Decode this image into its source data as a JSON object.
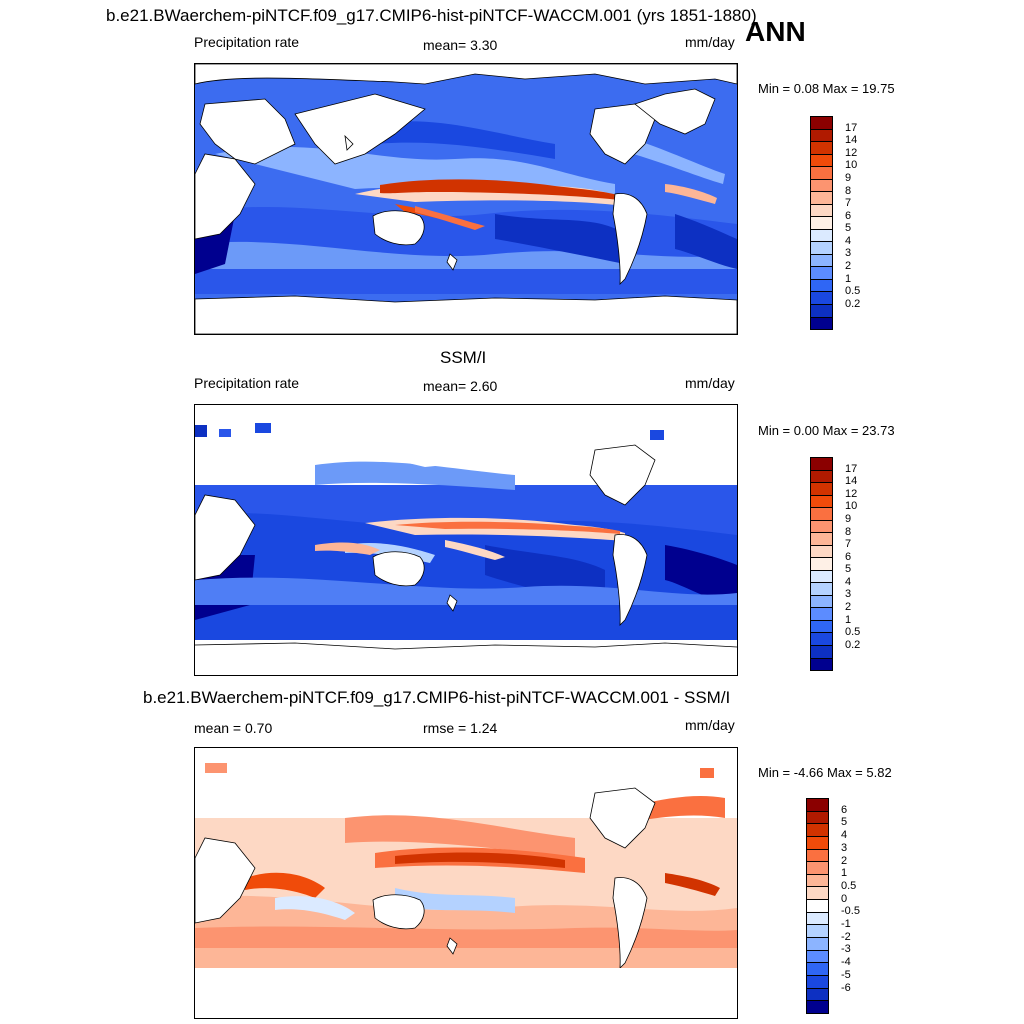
{
  "title": "b.e21.BWaerchem-piNTCF.f09_g17.CMIP6-hist-piNTCF-WACCM.001 (yrs 1851-1880)",
  "season": "ANN",
  "panels": [
    {
      "id": "model",
      "title": "",
      "left_text": "Precipitation rate",
      "mid_text": "mean=   3.30",
      "units": "mm/day",
      "range_text": "Min =   0.08 Max =  19.75",
      "colorbar": {
        "labels": [
          "17",
          "14",
          "12",
          "10",
          "9",
          "8",
          "7",
          "6",
          "5",
          "4",
          "3",
          "2",
          "1",
          "0.5",
          "0.2"
        ],
        "colors": [
          "#8b0000",
          "#b01a00",
          "#d13300",
          "#f04b0a",
          "#fa7040",
          "#fc9470",
          "#fdb697",
          "#fdd8c4",
          "#fef0e6",
          "#dbeaff",
          "#b4d2ff",
          "#8cb4ff",
          "#5c8cff",
          "#2f66f5",
          "#1a48e0",
          "#0d30c2",
          "#00008f"
        ]
      }
    },
    {
      "id": "obs",
      "title": "SSM/I",
      "left_text": "Precipitation rate",
      "mid_text": "mean=   2.60",
      "units": "mm/day",
      "range_text": "Min =   0.00 Max =  23.73",
      "colorbar": {
        "labels": [
          "17",
          "14",
          "12",
          "10",
          "9",
          "8",
          "7",
          "6",
          "5",
          "4",
          "3",
          "2",
          "1",
          "0.5",
          "0.2"
        ],
        "colors": [
          "#8b0000",
          "#b01a00",
          "#d13300",
          "#f04b0a",
          "#fa7040",
          "#fc9470",
          "#fdb697",
          "#fdd8c4",
          "#fef0e6",
          "#dbeaff",
          "#b4d2ff",
          "#8cb4ff",
          "#5c8cff",
          "#2f66f5",
          "#1a48e0",
          "#0d30c2",
          "#00008f"
        ]
      }
    },
    {
      "id": "diff",
      "title": "b.e21.BWaerchem-piNTCF.f09_g17.CMIP6-hist-piNTCF-WACCM.001 - SSM/I",
      "left_text": "mean =   0.70",
      "mid_text": "rmse =   1.24",
      "units": "mm/day",
      "range_text": "Min =  -4.66 Max =   5.82",
      "colorbar": {
        "labels": [
          "6",
          "5",
          "4",
          "3",
          "2",
          "1",
          "0.5",
          "0",
          "-0.5",
          "-1",
          "-2",
          "-3",
          "-4",
          "-5",
          "-6"
        ],
        "colors": [
          "#8b0000",
          "#b01a00",
          "#d13300",
          "#f04b0a",
          "#fa7040",
          "#fc9470",
          "#fdb697",
          "#fdd8c4",
          "#ffffff",
          "#dbeaff",
          "#b4d2ff",
          "#8cb4ff",
          "#5c8cff",
          "#2f66f5",
          "#1a48e0",
          "#0d30c2",
          "#00008f"
        ]
      }
    }
  ]
}
